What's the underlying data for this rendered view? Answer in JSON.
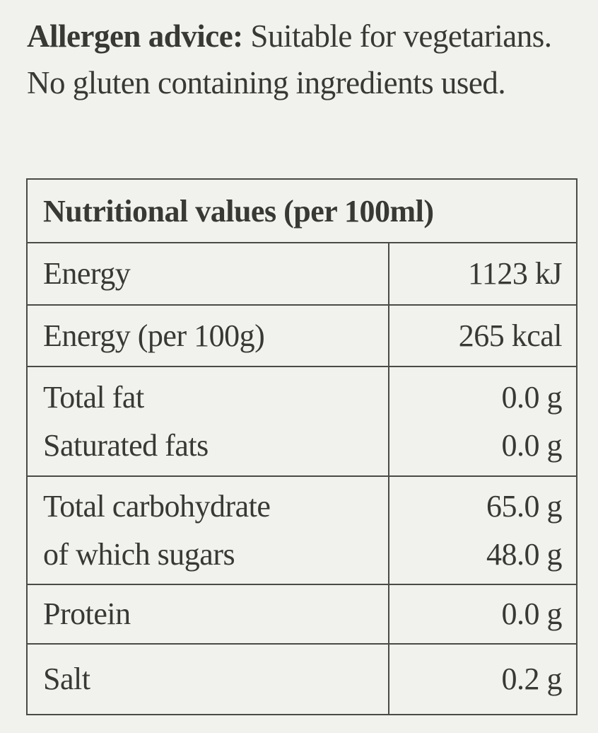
{
  "allergen": {
    "label": "Allergen advice:",
    "text": " Suitable for vegetarians. No gluten containing ingredients used."
  },
  "table": {
    "title": "Nutritional values (per 100ml)",
    "rows": [
      {
        "labels": [
          "Energy"
        ],
        "values": [
          "1123 kJ"
        ]
      },
      {
        "labels": [
          "Energy (per 100g)"
        ],
        "values": [
          "265 kcal"
        ]
      },
      {
        "labels": [
          "Total fat",
          "Saturated fats"
        ],
        "values": [
          "0.0 g",
          "0.0 g"
        ]
      },
      {
        "labels": [
          "Total carbohydrate",
          "of which sugars"
        ],
        "values": [
          "65.0 g",
          "48.0 g"
        ]
      },
      {
        "labels": [
          "Protein"
        ],
        "values": [
          "0.0 g"
        ]
      },
      {
        "labels": [
          "Salt"
        ],
        "values": [
          "0.2 g"
        ]
      }
    ]
  }
}
